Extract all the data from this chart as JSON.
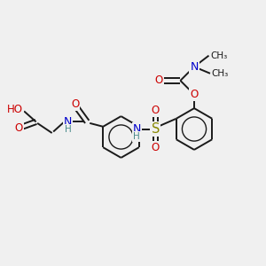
{
  "bg_color": "#f0f0f0",
  "bond_color": "#1a1a1a",
  "atom_colors": {
    "O": "#cc0000",
    "N": "#0000cc",
    "S": "#888800",
    "H": "#4a8a8a",
    "C": "#1a1a1a"
  },
  "bond_width": 1.4,
  "font_size": 8.5,
  "figsize": [
    3.0,
    3.0
  ],
  "dpi": 100,
  "xlim": [
    0,
    10
  ],
  "ylim": [
    0,
    10
  ]
}
